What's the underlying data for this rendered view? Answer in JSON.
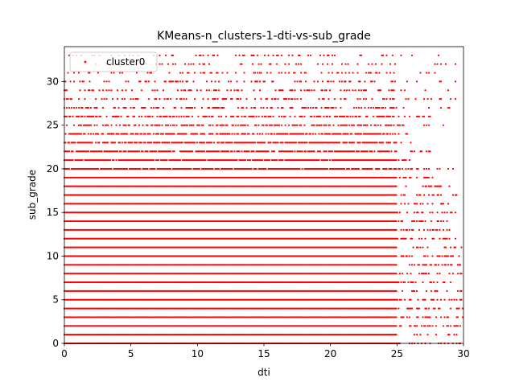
{
  "chart_data": {
    "type": "scatter",
    "title": "KMeans-n_clusters-1-dti-vs-sub_grade",
    "xlabel": "dti",
    "ylabel": "sub_grade",
    "xlim": [
      0,
      30
    ],
    "ylim": [
      0,
      34
    ],
    "xticks": [
      0,
      5,
      10,
      15,
      20,
      25,
      30
    ],
    "yticks": [
      0,
      5,
      10,
      15,
      20,
      25,
      30
    ],
    "grid": false,
    "legend_position": "upper-left",
    "series": [
      {
        "name": "cluster0",
        "color": "#ff0000",
        "marker": "dot",
        "x_max_dense": 25,
        "levels": [
          {
            "sub_grade": 0,
            "x_max": 30,
            "density": 1.0
          },
          {
            "sub_grade": 1,
            "x_max": 30,
            "density": 1.0
          },
          {
            "sub_grade": 2,
            "x_max": 30,
            "density": 1.0
          },
          {
            "sub_grade": 3,
            "x_max": 30,
            "density": 1.0
          },
          {
            "sub_grade": 4,
            "x_max": 30,
            "density": 1.0
          },
          {
            "sub_grade": 5,
            "x_max": 30,
            "density": 1.0
          },
          {
            "sub_grade": 6,
            "x_max": 30,
            "density": 1.0
          },
          {
            "sub_grade": 7,
            "x_max": 30,
            "density": 1.0
          },
          {
            "sub_grade": 8,
            "x_max": 30,
            "density": 1.0
          },
          {
            "sub_grade": 9,
            "x_max": 30,
            "density": 1.0
          },
          {
            "sub_grade": 10,
            "x_max": 30,
            "density": 1.0
          },
          {
            "sub_grade": 11,
            "x_max": 30,
            "density": 1.0
          },
          {
            "sub_grade": 12,
            "x_max": 29.5,
            "density": 1.0
          },
          {
            "sub_grade": 13,
            "x_max": 29,
            "density": 1.0
          },
          {
            "sub_grade": 14,
            "x_max": 29,
            "density": 1.0
          },
          {
            "sub_grade": 15,
            "x_max": 29.5,
            "density": 1.0
          },
          {
            "sub_grade": 16,
            "x_max": 29,
            "density": 1.0
          },
          {
            "sub_grade": 17,
            "x_max": 29.5,
            "density": 1.0
          },
          {
            "sub_grade": 18,
            "x_max": 29,
            "density": 1.0
          },
          {
            "sub_grade": 19,
            "x_max": 28,
            "density": 1.0
          },
          {
            "sub_grade": 20,
            "x_max": 29.8,
            "density": 0.9
          },
          {
            "sub_grade": 21,
            "x_max": 26,
            "density": 0.9
          },
          {
            "sub_grade": 22,
            "x_max": 27.5,
            "density": 0.85
          },
          {
            "sub_grade": 23,
            "x_max": 26.5,
            "density": 0.8
          },
          {
            "sub_grade": 24,
            "x_max": 26,
            "density": 0.7
          },
          {
            "sub_grade": 25,
            "x_max": 28.5,
            "density": 0.6
          },
          {
            "sub_grade": 26,
            "x_max": 29,
            "density": 0.5
          },
          {
            "sub_grade": 27,
            "x_max": 29.5,
            "density": 0.4
          },
          {
            "sub_grade": 28,
            "x_max": 29.5,
            "density": 0.35
          },
          {
            "sub_grade": 29,
            "x_max": 29,
            "density": 0.3
          },
          {
            "sub_grade": 30,
            "x_max": 29.5,
            "density": 0.28
          },
          {
            "sub_grade": 31,
            "x_max": 29.5,
            "density": 0.22
          },
          {
            "sub_grade": 32,
            "x_max": 30,
            "density": 0.2
          },
          {
            "sub_grade": 33,
            "x_max": 30,
            "density": 0.18
          }
        ]
      }
    ]
  }
}
